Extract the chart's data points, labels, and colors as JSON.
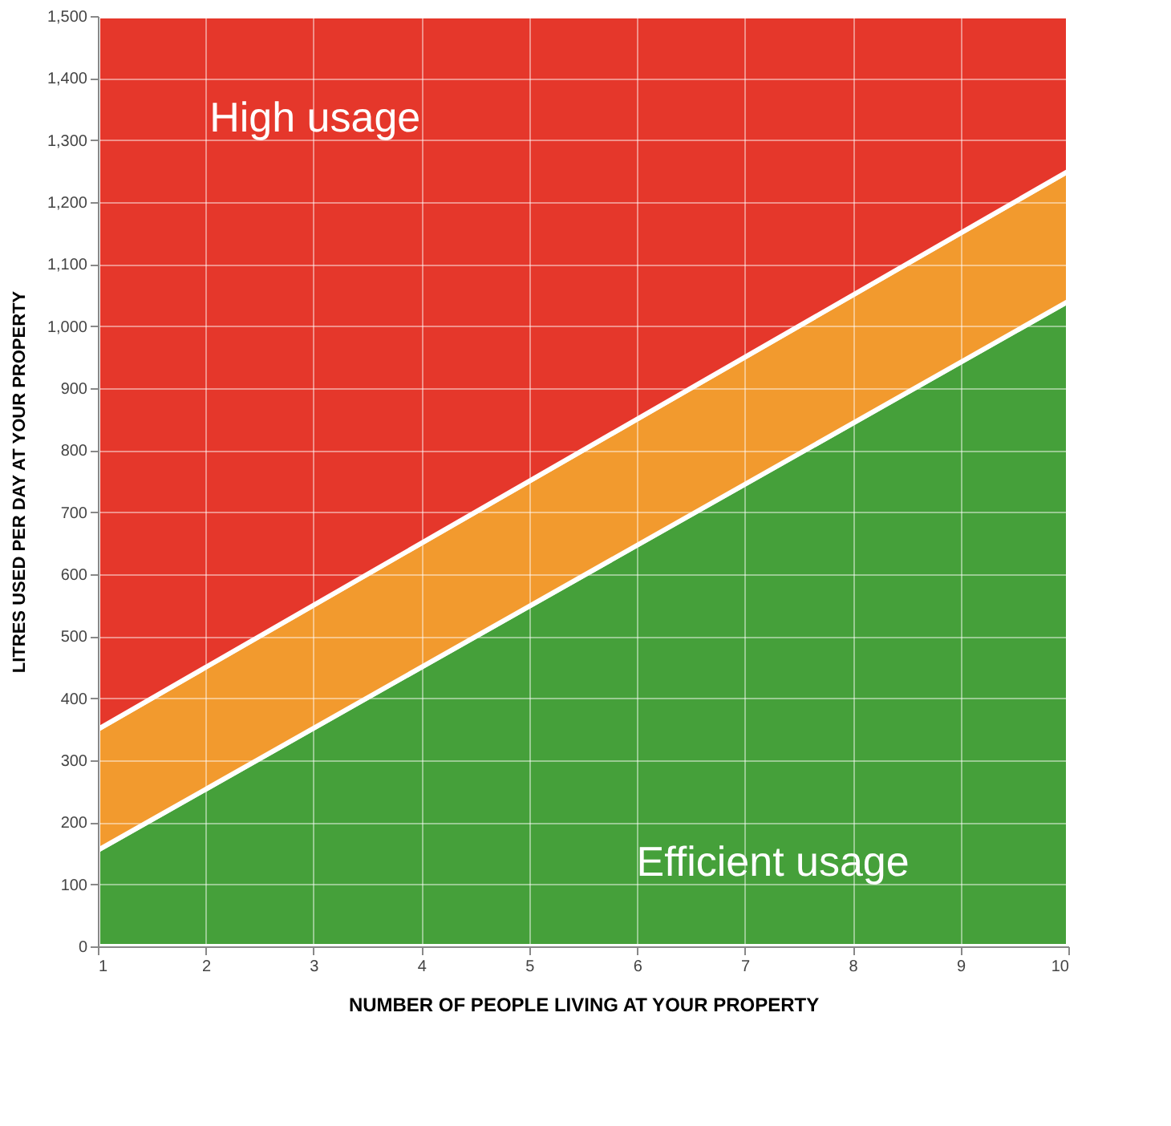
{
  "chart_data": {
    "type": "area",
    "stacked": true,
    "x": [
      1,
      10
    ],
    "series": [
      {
        "color": "#45a03a",
        "values": [
          155,
          1040
        ]
      },
      {
        "color": "#f29a2e",
        "values": [
          195,
          210
        ]
      },
      {
        "color": "#e5372b",
        "values": [
          1150,
          250
        ]
      }
    ],
    "xlabel": "NUMBER OF PEOPLE LIVING AT YOUR PROPERTY",
    "ylabel": "LITRES USED PER DAY AT YOUR  PROPERTY",
    "xlim": [
      1,
      10
    ],
    "xticks": [
      1,
      2,
      3,
      4,
      5,
      6,
      7,
      8,
      9,
      10
    ],
    "ylim": [
      0,
      1500
    ],
    "yticks": [
      0,
      100,
      200,
      300,
      400,
      500,
      600,
      700,
      800,
      900,
      {
        "value": 1000,
        "label": "1,000"
      },
      {
        "value": 1100,
        "label": "1,100"
      },
      {
        "value": 1200,
        "label": "1,200"
      },
      {
        "value": 1300,
        "label": "1,300"
      },
      {
        "value": 1400,
        "label": "1,400"
      },
      {
        "value": 1500,
        "label": "1,500"
      }
    ],
    "grid": true,
    "legend": false,
    "annotations": [
      "High usage",
      "Efficient usage"
    ]
  }
}
